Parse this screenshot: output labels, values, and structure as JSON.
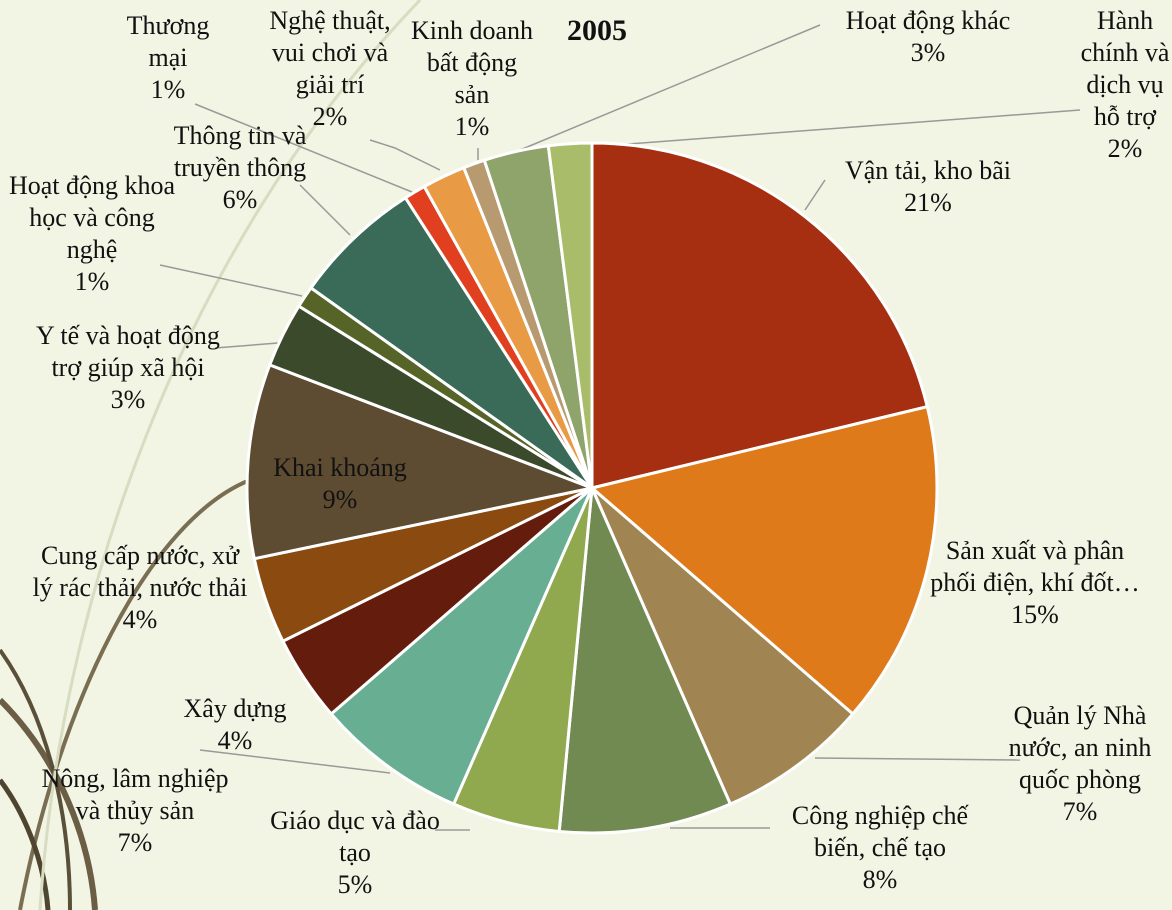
{
  "chart_data": {
    "type": "pie",
    "title": "2005",
    "categories": [
      "Vận tải, kho bãi",
      "Sản xuất và phân phối điện, khí đốt…",
      "Quản lý Nhà nước, an ninh quốc phòng",
      "Công nghiệp chế biến, chế tạo",
      "Giáo dục và đào tạo",
      "Nông, lâm nghiệp và thủy sản",
      "Xây dựng",
      "Cung cấp nước, xử lý rác thải, nước thải",
      "Khai khoáng",
      "Y tế và hoạt động trợ giúp xã hội",
      "Hoạt động khoa học và công nghệ",
      "Thông tin và truyền thông",
      "Thương mại",
      "Nghệ thuật, vui chơi và giải trí",
      "Kinh doanh bất động sản",
      "Hoạt động khác",
      "Hành chính và dịch vụ hỗ trợ"
    ],
    "values": [
      21,
      15,
      7,
      8,
      5,
      7,
      4,
      4,
      9,
      3,
      1,
      6,
      1,
      2,
      1,
      3,
      2
    ],
    "value_labels": [
      "21%",
      "15%",
      "7%",
      "8%",
      "5%",
      "7%",
      "4%",
      "4%",
      "9%",
      "3%",
      "1%",
      "6%",
      "1%",
      "2%",
      "1%",
      "3%",
      "2%"
    ],
    "colors": [
      "#a52f10",
      "#df7a1a",
      "#a08552",
      "#718a52",
      "#90a84e",
      "#67ae93",
      "#641c0c",
      "#8a4a10",
      "#5e4c32",
      "#3c4a2c",
      "#566428",
      "#3a6a58",
      "#e04020",
      "#e89a44",
      "#b89a70",
      "#8ea46a",
      "#a8bc6a"
    ]
  }
}
